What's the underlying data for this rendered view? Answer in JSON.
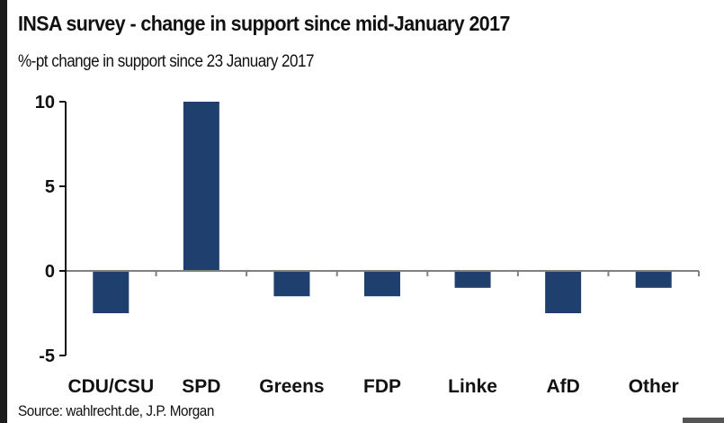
{
  "chart_data": {
    "type": "bar",
    "title": "INSA survey - change in support since mid-January 2017",
    "subtitle": "%-pt change in support since 23 January 2017",
    "source": "Source: wahlrecht.de, J.P. Morgan",
    "xlabel": "",
    "ylabel": "",
    "categories": [
      "CDU/CSU",
      "SPD",
      "Greens",
      "FDP",
      "Linke",
      "AfD",
      "Other"
    ],
    "values": [
      -2.5,
      10,
      -1.5,
      -1.5,
      -1,
      -2.5,
      -1
    ],
    "ylim": [
      -5,
      10
    ],
    "yticks": [
      10,
      5,
      0,
      -5
    ],
    "ytick_labels": [
      "10",
      "5",
      "0",
      "-5"
    ],
    "grid": false,
    "legend": "none",
    "colors": {
      "bar": "#1f3f6e",
      "axis": "#111111",
      "zero_line": "#808080"
    }
  }
}
